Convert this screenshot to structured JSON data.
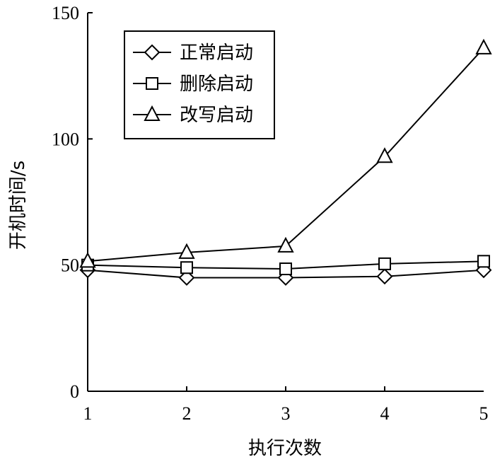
{
  "chart_data": {
    "type": "line",
    "title": "",
    "xlabel": "执行次数",
    "ylabel": "开机时间/s",
    "x": [
      1,
      2,
      3,
      4,
      5
    ],
    "xlim": [
      1,
      5
    ],
    "ylim": [
      0,
      150
    ],
    "x_ticks": [
      "1",
      "2",
      "3",
      "4",
      "5"
    ],
    "y_ticks": [
      "0",
      "50",
      "100",
      "150"
    ],
    "y_tick_values": [
      0,
      50,
      100,
      150
    ],
    "grid": false,
    "legend_position": "top-left",
    "series": [
      {
        "name": "正常启动",
        "marker": "diamond",
        "values": [
          48,
          45,
          45,
          45.5,
          48
        ]
      },
      {
        "name": "删除启动",
        "marker": "square",
        "values": [
          50,
          49,
          48.5,
          50.5,
          51.5
        ]
      },
      {
        "name": "改写启动",
        "marker": "triangle",
        "values": [
          51.5,
          55,
          57.5,
          93,
          136
        ]
      }
    ]
  }
}
